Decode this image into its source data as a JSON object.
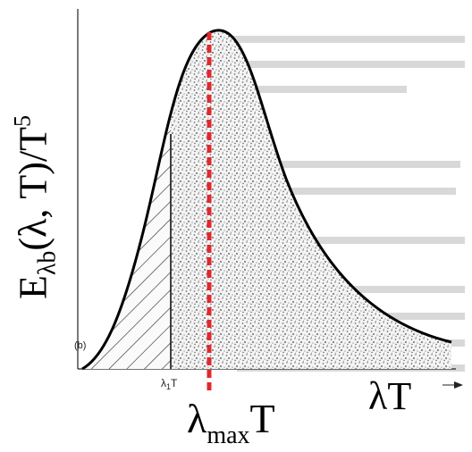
{
  "panel_tag": "(b)",
  "y_axis": {
    "base": "E",
    "sub": "λb",
    "args": "(λ, T)/T",
    "sup": "5"
  },
  "x_axis_label": "λT",
  "peak_label": {
    "base": "λ",
    "sub": "max",
    "tail": "T"
  },
  "tick_label": {
    "base": "λ",
    "sub": "1",
    "tail": "T"
  },
  "colors": {
    "curve": "#000000",
    "peak_line": "#e0282f",
    "stipple": "#6e6e6e",
    "hatch": "#333333"
  }
}
